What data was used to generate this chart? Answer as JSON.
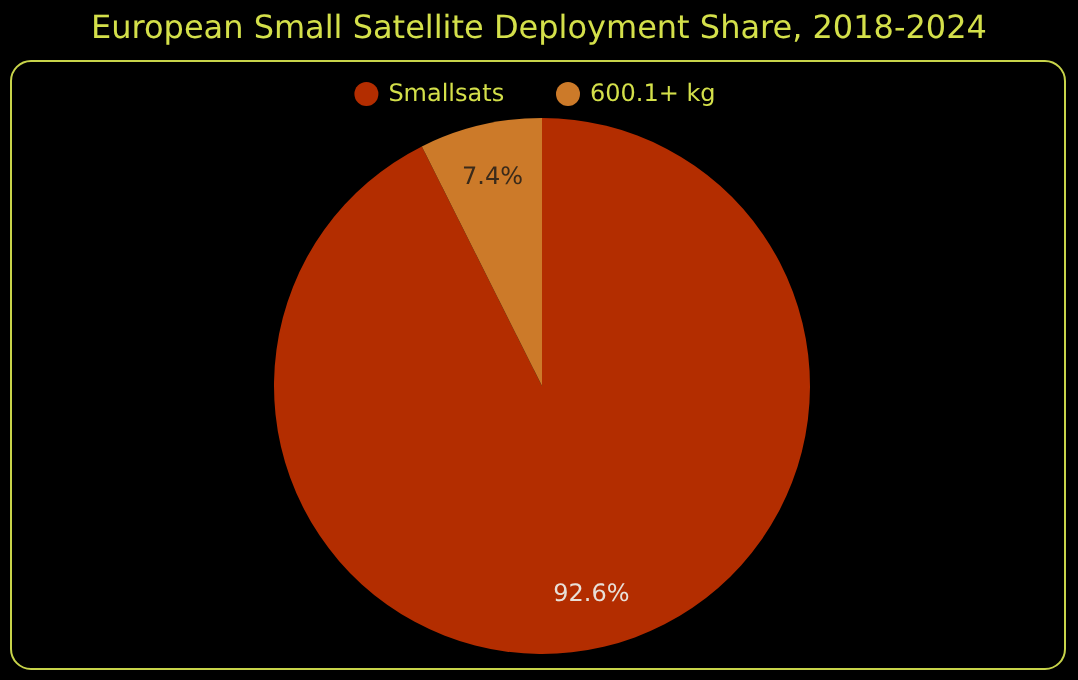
{
  "chart_data": {
    "type": "pie",
    "title": "European Small Satellite Deployment Share, 2018-2024",
    "categories": [
      "Smallsats",
      "600.1+ kg"
    ],
    "values": [
      92.6,
      7.4
    ],
    "colors": [
      "#b32d00",
      "#cc7a29"
    ],
    "value_labels": [
      "92.6%",
      "7.4%"
    ],
    "legend": "top"
  }
}
